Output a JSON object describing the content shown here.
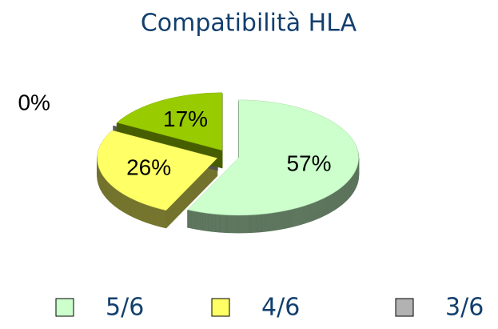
{
  "chart_data": {
    "type": "pie",
    "title": "Compatibilità HLA",
    "categories": [
      "5/6",
      "4/6",
      "3/6",
      null
    ],
    "values": [
      57,
      26,
      0,
      17
    ],
    "value_labels": [
      "57%",
      "26%",
      "0%",
      "17%"
    ],
    "colors": [
      "#ccffcc",
      "#ffff66",
      "#b2b2b2",
      "#99cc00"
    ],
    "legend": "bottom"
  }
}
